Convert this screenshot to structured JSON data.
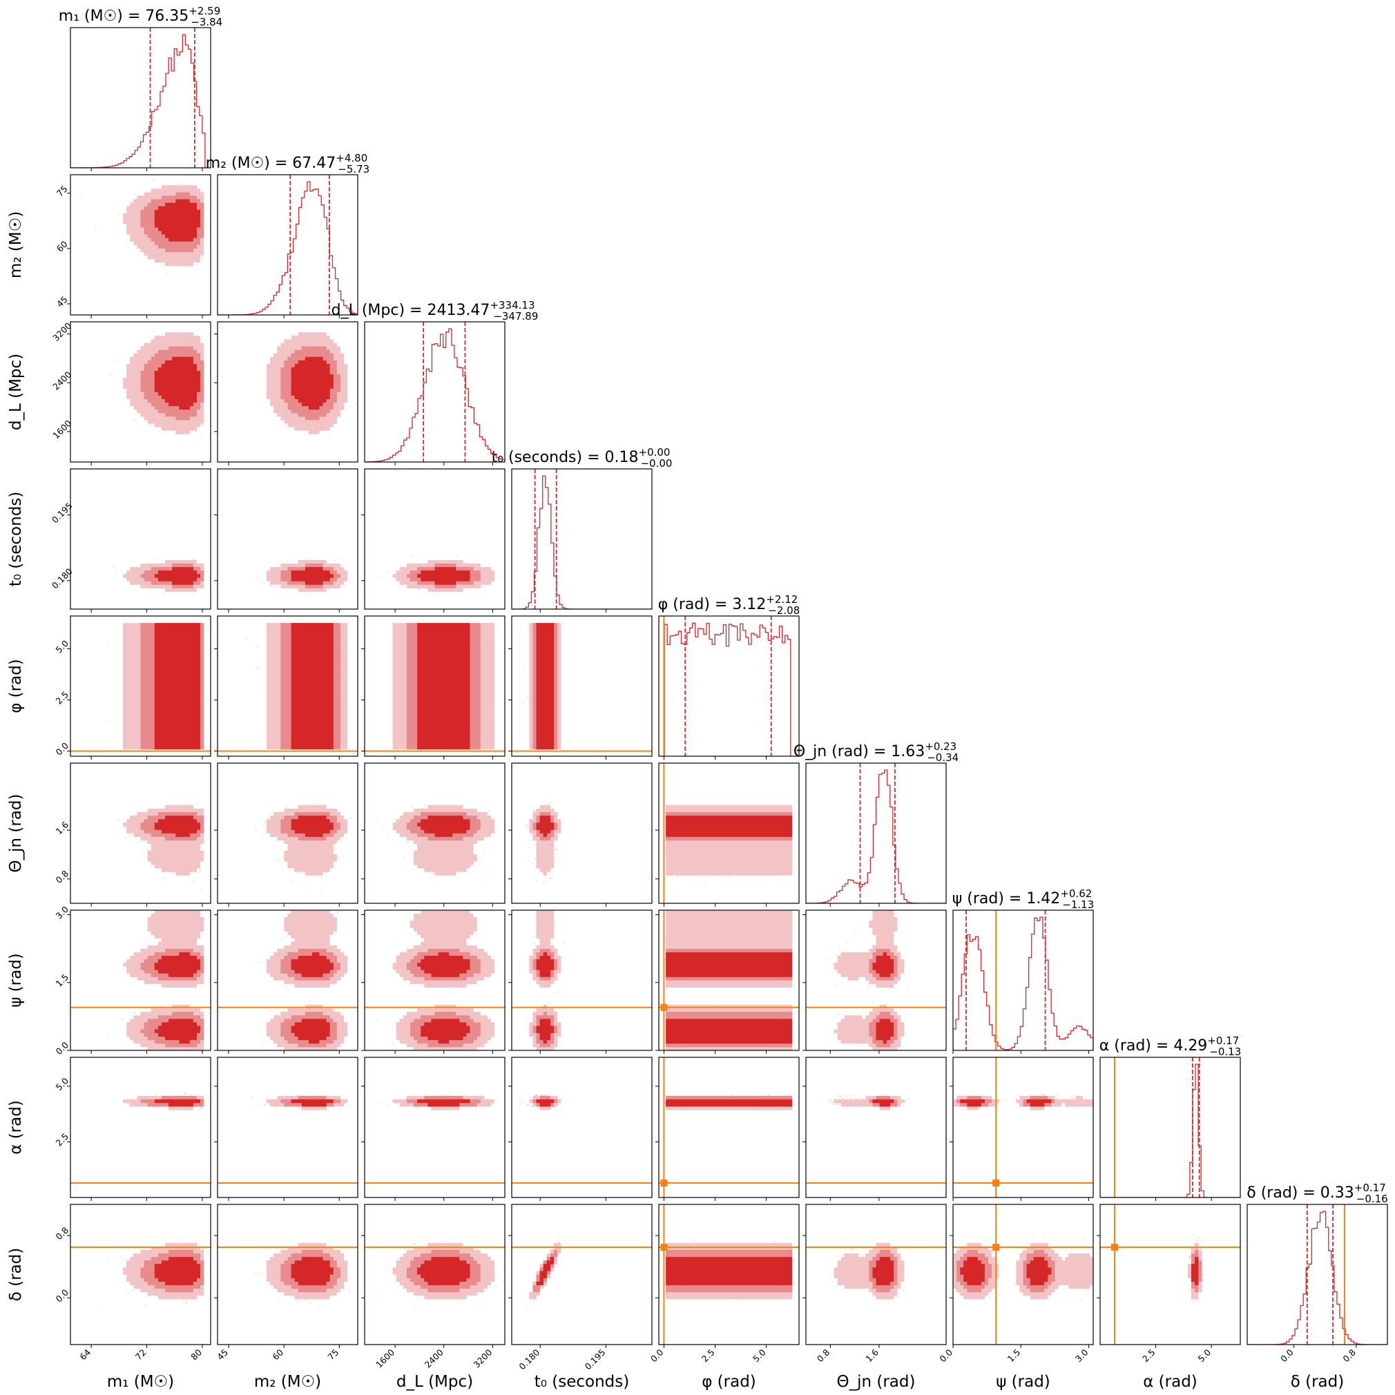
{
  "chart_data": {
    "type": "corner",
    "colors": {
      "posterior": "#d62728",
      "injection": "#ff7f0e",
      "axes": "#000000"
    },
    "params": [
      {
        "key": "m1",
        "label": "m₁ (M☉)",
        "title_prefix": "m₁ (M☉) = ",
        "median": "76.35",
        "plus": "+2.59",
        "minus": "−3.84",
        "range": [
          61,
          81.2
        ],
        "ticks": [
          64,
          72,
          80
        ],
        "tick_labels": [
          "64",
          "72",
          "80"
        ],
        "q_lo": 72.5,
        "q_hi": 78.9,
        "injection": null
      },
      {
        "key": "m2",
        "label": "m₂ (M☉)",
        "title_prefix": "m₂ (M☉) = ",
        "median": "67.47",
        "plus": "+4.80",
        "minus": "−5.73",
        "range": [
          42,
          80
        ],
        "ticks": [
          45,
          60,
          75
        ],
        "tick_labels": [
          "45",
          "60",
          "75"
        ],
        "q_lo": 61.7,
        "q_hi": 72.3,
        "injection": null
      },
      {
        "key": "dL",
        "label": "d_L (Mpc)",
        "title_prefix": "d_L (Mpc) = ",
        "median": "2413.47",
        "plus": "+334.13",
        "minus": "−347.89",
        "range": [
          1100,
          3400
        ],
        "ticks": [
          1600,
          2400,
          3200
        ],
        "tick_labels": [
          "1600",
          "2400",
          "3200"
        ],
        "q_lo": 2065,
        "q_hi": 2748,
        "injection": null
      },
      {
        "key": "t0",
        "label": "t₀ (seconds)",
        "title_prefix": "t₀ (seconds) = ",
        "median": "0.18",
        "plus": "+0.00",
        "minus": "−0.00",
        "range": [
          0.1735,
          0.2055
        ],
        "ticks": [
          0.18,
          0.195
        ],
        "tick_labels": [
          "0.180",
          "0.195"
        ],
        "q_lo": 0.1788,
        "q_hi": 0.1837,
        "injection": null
      },
      {
        "key": "phi",
        "label": "φ (rad)",
        "title_prefix": "φ (rad) = ",
        "median": "3.12",
        "plus": "+2.12",
        "minus": "−2.08",
        "range": [
          -0.25,
          6.6
        ],
        "ticks": [
          0,
          2.5,
          5
        ],
        "tick_labels": [
          "0.0",
          "2.5",
          "5.0"
        ],
        "q_lo": 1.04,
        "q_hi": 5.24,
        "injection": 0.0
      },
      {
        "key": "theta",
        "label": "Θ_jn (rad)",
        "title_prefix": "Θ_jn (rad) = ",
        "median": "1.63",
        "plus": "+0.23",
        "minus": "−0.34",
        "range": [
          0.4,
          2.7
        ],
        "ticks": [
          0.8,
          1.6
        ],
        "tick_labels": [
          "0.8",
          "1.6"
        ],
        "q_lo": 1.29,
        "q_hi": 1.86,
        "injection": null
      },
      {
        "key": "psi",
        "label": "ψ (rad)",
        "title_prefix": "ψ (rad) = ",
        "median": "1.42",
        "plus": "+0.62",
        "minus": "−1.13",
        "range": [
          0,
          3.1
        ],
        "ticks": [
          0,
          1.5,
          3
        ],
        "tick_labels": [
          "0.0",
          "1.5",
          "3.0"
        ],
        "q_lo": 0.29,
        "q_hi": 2.04,
        "injection": 0.95
      },
      {
        "key": "alpha",
        "label": "α (rad)",
        "title_prefix": "α (rad) = ",
        "median": "4.29",
        "plus": "+0.17",
        "minus": "−0.13",
        "range": [
          0,
          6.3
        ],
        "ticks": [
          2.5,
          5
        ],
        "tick_labels": [
          "2.5",
          "5.0"
        ],
        "q_lo": 4.16,
        "q_hi": 4.46,
        "injection": 0.65
      },
      {
        "key": "delta",
        "label": "δ (rad)",
        "title_prefix": "δ (rad) = ",
        "median": "0.33",
        "plus": "+0.17",
        "minus": "−0.16",
        "range": [
          -0.6,
          1.2
        ],
        "ticks": [
          0,
          0.8
        ],
        "tick_labels": [
          "0.0",
          "0.8"
        ],
        "q_lo": 0.17,
        "q_hi": 0.5,
        "injection": 0.65
      }
    ]
  }
}
